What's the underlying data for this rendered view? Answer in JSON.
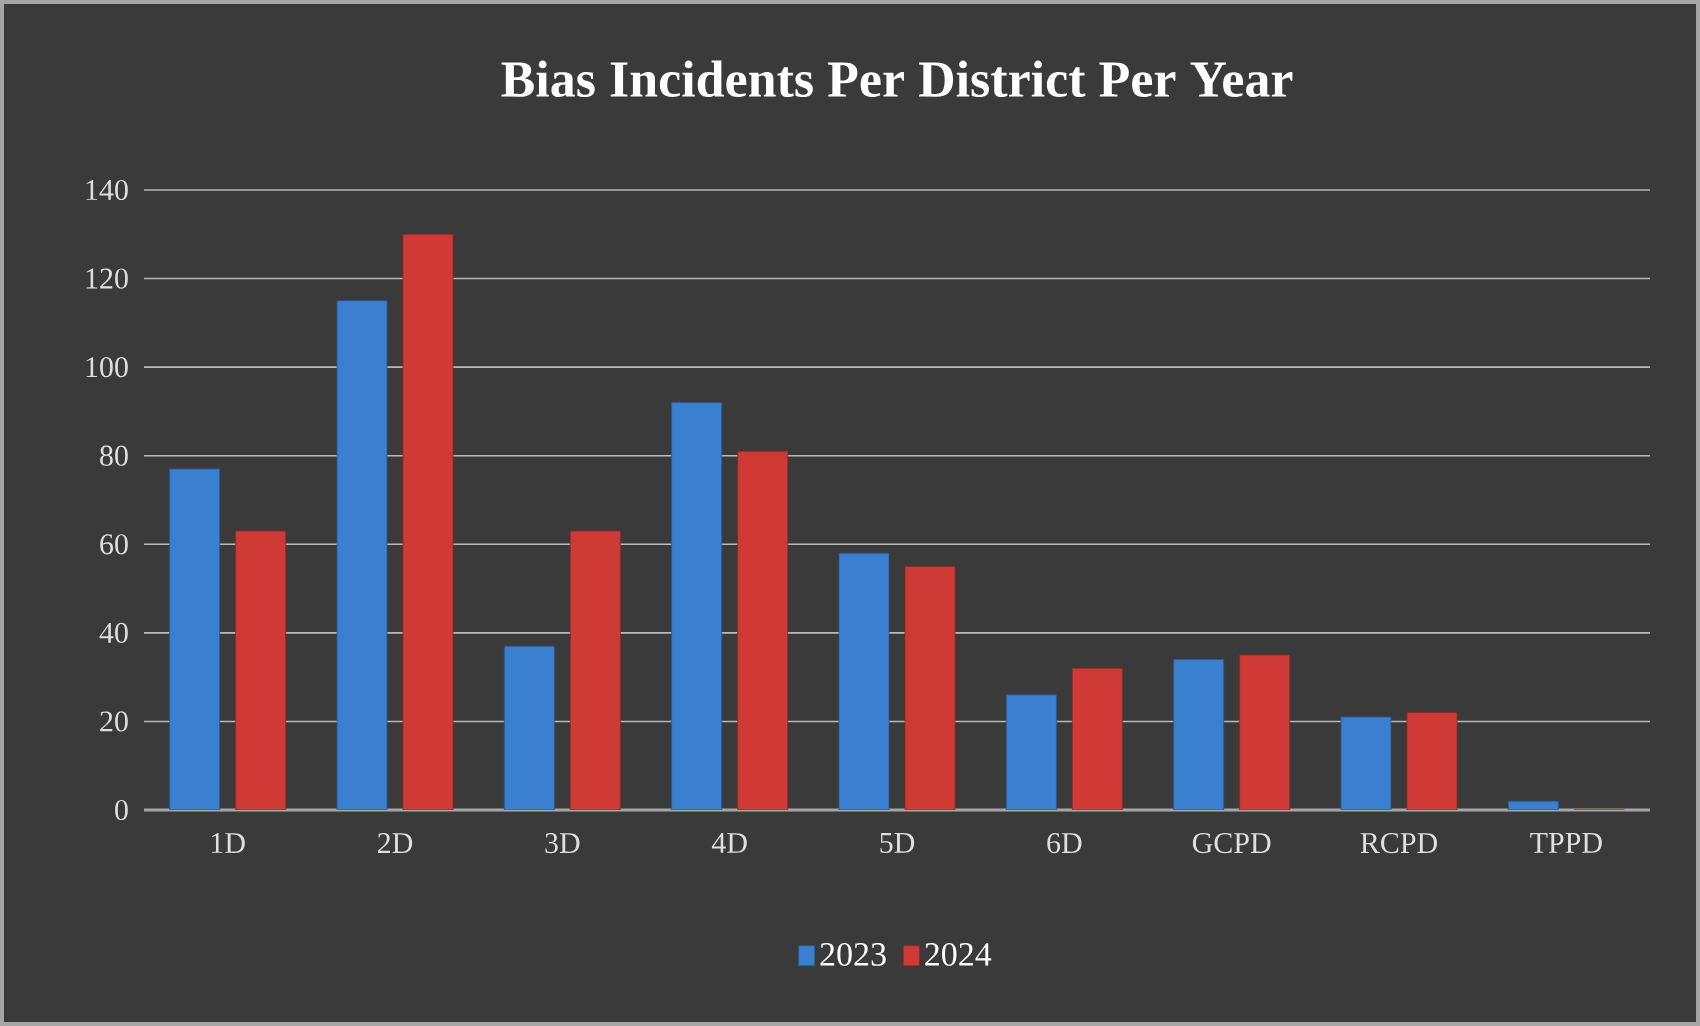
{
  "chart_data": {
    "type": "bar",
    "title": "Bias Incidents Per District Per Year",
    "categories": [
      "1D",
      "2D",
      "3D",
      "4D",
      "5D",
      "6D",
      "GCPD",
      "RCPD",
      "TPPD"
    ],
    "series": [
      {
        "name": "2023",
        "color": "#3b7fd0",
        "values": [
          77,
          115,
          37,
          92,
          58,
          26,
          34,
          21,
          2
        ]
      },
      {
        "name": "2024",
        "color": "#d03a36",
        "values": [
          63,
          130,
          63,
          81,
          55,
          32,
          35,
          22,
          0
        ]
      }
    ],
    "ylim": [
      0,
      140
    ],
    "yticks": [
      0,
      20,
      40,
      60,
      80,
      100,
      120,
      140
    ],
    "grid": "y",
    "legend": "bottom"
  }
}
